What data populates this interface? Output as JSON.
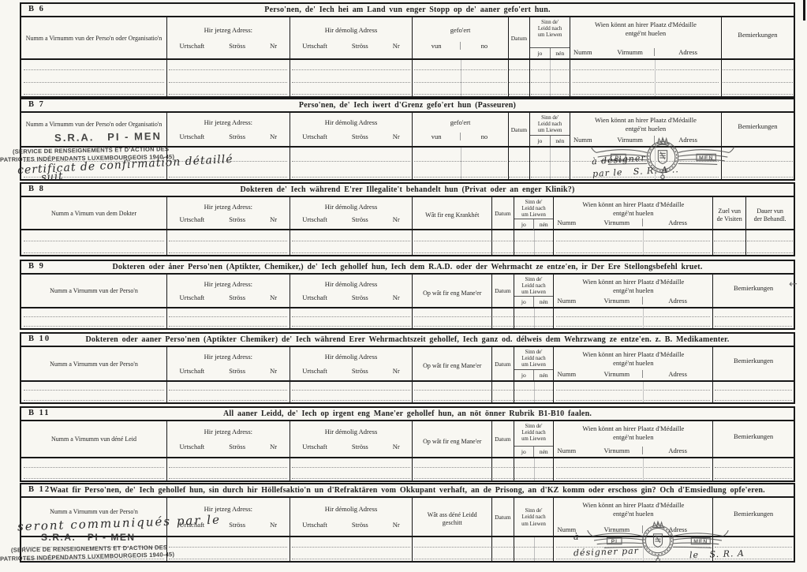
{
  "document": {
    "headers": {
      "jetzeg_adress": "Hir jetzeg Adress:",
      "demolig_adress": "Hir démolig Adress",
      "urtschaft": "Urtschaft",
      "stross": "Ströss",
      "nr": "Nr",
      "datum": "Datum",
      "sinn_line1": "Sinn de'",
      "sinn_line2": "Leidd nach",
      "sinn_line3": "um Liewen",
      "jo": "jo",
      "nen": "nén",
      "wien_line1": "Wien könnt an hirer Plaatz d'Médaille",
      "wien_line2": "entgé'nt huelen",
      "numm": "Numm",
      "virnumm": "Virnumm",
      "adress": "Adress",
      "bemierkungen": "Bemierkungen"
    },
    "sections": [
      {
        "id": "B 6",
        "title": "Perso'nen, de' Iech hei am Land vun enger Stopp op de' aaner gefo'ert hun.",
        "name_label": "Numm a Virnumm vun der Perso'n oder Organisatio'n",
        "middle_line1": "gefo'ert",
        "middle_sub": [
          "vun",
          "no"
        ],
        "jo_nen": true,
        "variant": "v-split",
        "rows": 3
      },
      {
        "id": "B 7",
        "title": "Perso'nen, de' Iech iwert d'Grenz gefo'ert hun (Passeuren)",
        "name_label": "Numm a Virnumm vun der Perso'n oder Organisatio'n",
        "middle_line1": "gefo'ert",
        "middle_sub": [
          "vun",
          "no"
        ],
        "jo_nen": true,
        "variant": "v-split",
        "rows": 2,
        "name_top": true
      },
      {
        "id": "B 8",
        "title": "Dokteren de' Iech während E'rer Illegalite't behandelt hun (Privat oder an enger Klinik?)",
        "name_label": "Numm a Virnum vun dem Dokter",
        "middle_line1": "Wât fir eng Krankhét",
        "jo_nen": true,
        "variant": "v-b8",
        "rows": 2,
        "tail_cols": [
          {
            "line1": "Zuel vun",
            "line2": "de Visiten"
          },
          {
            "line1": "Dauer vun",
            "line2": "der Behandl."
          }
        ]
      },
      {
        "id": "B 9",
        "title": "Dokteren oder åner Perso'nen (Aptikter, Chemiker,) de' Iech gehollef hun, Iech dem R.A.D. oder der Wehrmacht ze entze'en, ir Der Ere Stellongsbefehl kruet.",
        "name_label": "Numm a Virnumm vun der Perso'n",
        "middle_line1": "Op wât fir eng Mane'er",
        "jo_nen": true,
        "variant": "v-single",
        "rows": 2
      },
      {
        "id": "B 10",
        "title": "Dokteren oder aaner Perso'nen (Aptikter Chemiker) de' Iech während Erer Wehrmachtszeit gehollef, Iech ganz od. délweis dem Wehrzwang ze entze'en. z. B. Medikamenter.",
        "name_label": "Numm a Virnumm vun der Perso'n",
        "middle_line1": "Op wât fir eng Mane'er",
        "jo_nen": true,
        "variant": "v-single",
        "rows": 2
      },
      {
        "id": "B 11",
        "title": "All aaner Leidd, de' Iech op irgent eng Mane'er gehollef hun, an nöt önner Rubrik B1-B10 faalen.",
        "name_label": "Numm a Virnumm vun déné Leid",
        "middle_line1": "Op wât fir eng Mane'er",
        "jo_nen": true,
        "variant": "v-single",
        "rows": 2
      },
      {
        "id": "B 12",
        "title": "Waat fir Perso'nen, de' Iech gehollef hun, sin durch hir Höllefsaktio'n un d'Refraktären vom Okkupant verhaft, an de Prisong, an d'KZ komm oder erschoss gin? Och d'Emsiedlung opfe'eren.",
        "name_label": "Numm a Virnumm vun der Perso'n",
        "middle_line1": "Wât ass déné Leidd",
        "middle_line2": "geschitt",
        "jo_nen": false,
        "variant": "v-single",
        "rows": 2,
        "name_top": true
      }
    ],
    "annotations": {
      "b7": {
        "stamp": "S.R.A.   PI - MEN",
        "service1": "(SERVICE DE RENSEIGNEMENTS ET D'ACTION DES",
        "service2": "PATRIOTES INDÉPENDANTS LUXEMBOURGEOIS 1940-45)",
        "hand1": "certificat de confirmation détaillé",
        "hand2": "suit",
        "wien_hand1": "à désigner",
        "wien_hand2": "par le   S. R. A .."
      },
      "b12": {
        "hand": "seront communiqués par le",
        "stamp": "S.R.A.   PI - MEN",
        "service1": "(SERVICE DE RENSEIGNEMENTS ET D'ACTION DES",
        "service2": "PATRIOTES INDÉPENDANTS LUXEMBOURGEOIS 1940-45)",
        "wien_hand1": "à",
        "wien_hand2": "désigner par",
        "wien_hand3": "le   S. R. A"
      },
      "emblem": {
        "left_wing": "PI",
        "right_wing": "MEN"
      },
      "artifacts": {
        "margin_arrow": "←"
      }
    }
  }
}
